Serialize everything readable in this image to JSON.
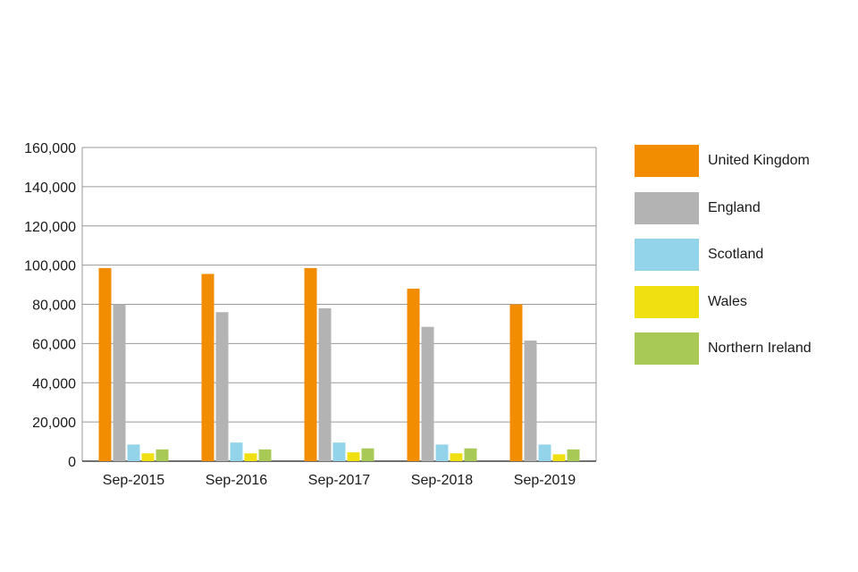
{
  "chart_data": {
    "type": "bar",
    "categories": [
      "Sep-2015",
      "Sep-2016",
      "Sep-2017",
      "Sep-2018",
      "Sep-2019"
    ],
    "series": [
      {
        "name": "United Kingdom",
        "color": "#f28c00",
        "values": [
          98500,
          95500,
          98500,
          88000,
          80000
        ]
      },
      {
        "name": "England",
        "color": "#b3b3b3",
        "values": [
          80000,
          76000,
          78000,
          68500,
          61500
        ]
      },
      {
        "name": "Scotland",
        "color": "#94d4ea",
        "values": [
          8500,
          9500,
          9500,
          8500,
          8500
        ]
      },
      {
        "name": "Wales",
        "color": "#f0e012",
        "values": [
          4000,
          4000,
          4500,
          4000,
          3500
        ]
      },
      {
        "name": "Northern Ireland",
        "color": "#a9c957",
        "values": [
          6000,
          6000,
          6500,
          6500,
          6000
        ]
      }
    ],
    "yticks": [
      "0",
      "20,000",
      "40,000",
      "60,000",
      "80,000",
      "100,000",
      "120,000",
      "140,000",
      "160,000"
    ],
    "ylim": [
      0,
      160000
    ],
    "grid": true,
    "legend_position": "right"
  }
}
